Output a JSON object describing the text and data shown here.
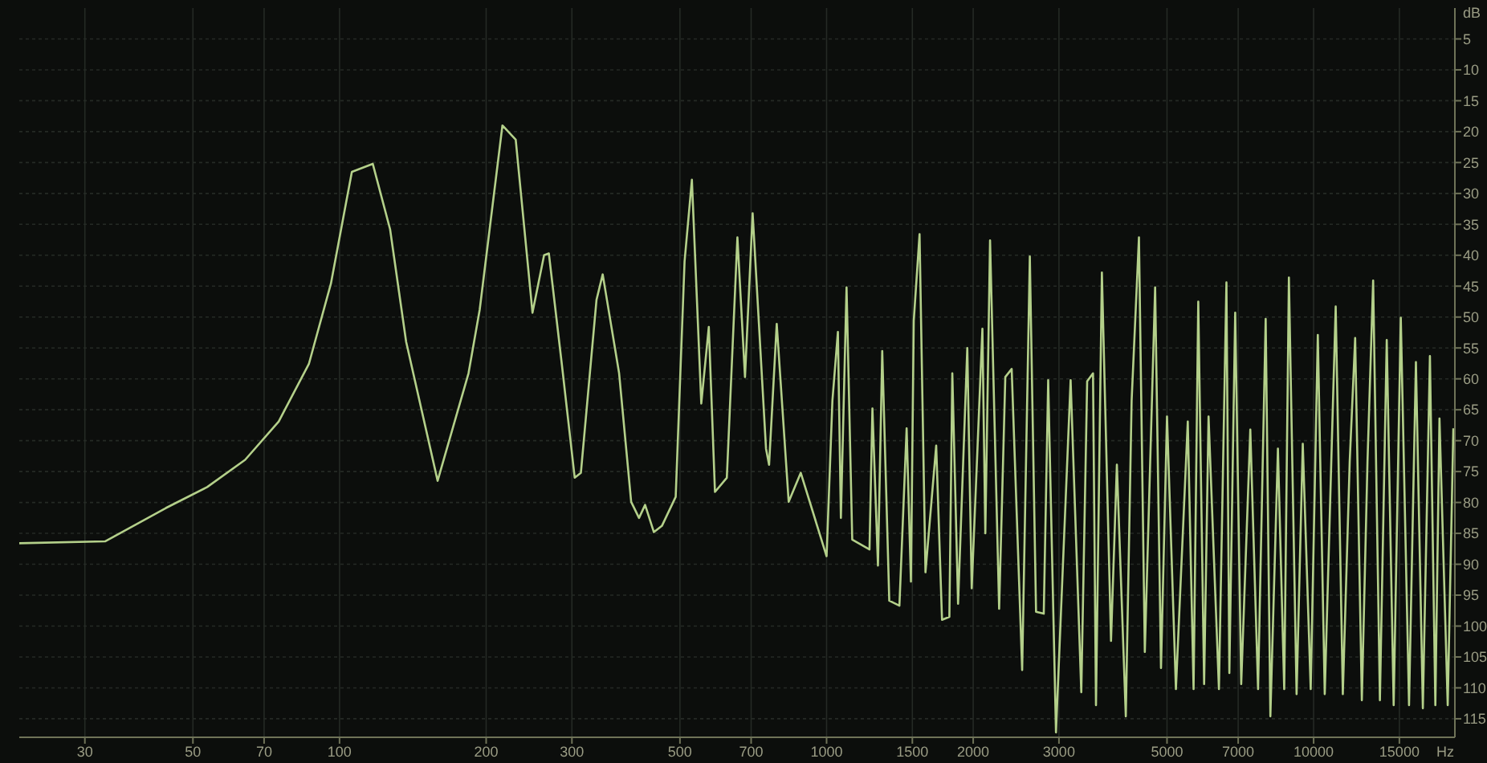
{
  "chart_data": {
    "type": "line",
    "xlabel": "Hz",
    "ylabel": "dB",
    "log": "x",
    "grid": true,
    "marker": "none",
    "line_style": "solid",
    "xlim": [
      22,
      19500
    ],
    "ylim": [
      -118,
      0
    ],
    "xticks": [
      30,
      50,
      70,
      100,
      200,
      300,
      500,
      700,
      1000,
      1500,
      2000,
      3000,
      5000,
      7000,
      10000,
      15000
    ],
    "yticks": [
      {
        "value": -5,
        "label": "5"
      },
      {
        "value": -10,
        "label": "10"
      },
      {
        "value": -15,
        "label": "15"
      },
      {
        "value": -20,
        "label": "20"
      },
      {
        "value": -25,
        "label": "25"
      },
      {
        "value": -30,
        "label": "30"
      },
      {
        "value": -35,
        "label": "35"
      },
      {
        "value": -40,
        "label": "40"
      },
      {
        "value": -45,
        "label": "45"
      },
      {
        "value": -50,
        "label": "50"
      },
      {
        "value": -55,
        "label": "55"
      },
      {
        "value": -60,
        "label": "60"
      },
      {
        "value": -65,
        "label": "65"
      },
      {
        "value": -70,
        "label": "70"
      },
      {
        "value": -75,
        "label": "75"
      },
      {
        "value": -80,
        "label": "80"
      },
      {
        "value": -85,
        "label": "85"
      },
      {
        "value": -90,
        "label": "90"
      },
      {
        "value": -95,
        "label": "95"
      },
      {
        "value": -100,
        "label": "100"
      },
      {
        "value": -105,
        "label": "105"
      },
      {
        "value": -110,
        "label": "110"
      },
      {
        "value": -115,
        "label": "115"
      }
    ],
    "x": [
      22,
      33,
      44,
      53.5,
      64,
      75,
      86.5,
      96,
      106,
      117,
      127,
      137,
      159,
      184,
      194,
      216,
      230,
      249,
      263,
      269,
      286,
      304,
      313,
      337,
      347,
      375,
      397,
      412,
      424,
      442,
      459,
      490,
      511,
      529,
      553,
      573,
      590,
      624,
      656,
      680,
      705,
      751,
      762,
      790,
      836,
      885,
      1000,
      1028,
      1055,
      1070,
      1099,
      1129,
      1225,
      1242,
      1275,
      1301,
      1345,
      1411,
      1460,
      1490,
      1510,
      1552,
      1596,
      1679,
      1726,
      1787,
      1812,
      1862,
      1945,
      1986,
      2089,
      2118,
      2166,
      2261,
      2328,
      2399,
      2521,
      2614,
      2692,
      2792,
      2851,
      2958,
      3170,
      3334,
      3428,
      3524,
      3574,
      3675,
      3837,
      3945,
      4115,
      4230,
      4379,
      4502,
      4727,
      4860,
      5000,
      5215,
      5516,
      5669,
      5796,
      5959,
      6085,
      6391,
      6622,
      6714,
      6902,
      7101,
      7413,
      7690,
      7972,
      8151,
      8447,
      8702,
      8897,
      9226,
      9500,
      9863,
      10200,
      10540,
      10890,
      11100,
      11480,
      11860,
      12170,
      12560,
      12900,
      13250,
      13680,
      14130,
      14600,
      15100,
      15700,
      16220,
      16760,
      17330,
      17780,
      18130,
      18850,
      19360
    ],
    "series": [
      {
        "color": "#b4d08a",
        "values": [
          -86.6,
          -86.3,
          -80.9,
          -77.5,
          -73.1,
          -66.9,
          -57.6,
          -44.6,
          -26.5,
          -25.2,
          -35.8,
          -54,
          -76.5,
          -59.1,
          -48.8,
          -19,
          -21.3,
          -49.3,
          -40,
          -39.7,
          -57.6,
          -76,
          -75.2,
          -47.2,
          -43.1,
          -59.1,
          -79.9,
          -82.5,
          -80.4,
          -84.8,
          -83.8,
          -79.1,
          -41,
          -27.8,
          -64,
          -51.6,
          -78.3,
          -76,
          -37.1,
          -59.7,
          -33.2,
          -71.3,
          -73.9,
          -51.1,
          -79.9,
          -75.2,
          -88.7,
          -63.5,
          -52.4,
          -82.5,
          -45.2,
          -86,
          -87.6,
          -64.8,
          -90.2,
          -55.5,
          -95.9,
          -96.7,
          -68,
          -92.8,
          -50.6,
          -36.6,
          -91.3,
          -70.8,
          -99,
          -98.5,
          -59.1,
          -96.4,
          -55,
          -93.9,
          -51.9,
          -85,
          -37.6,
          -97.2,
          -59.7,
          -58.4,
          -107.1,
          -40.2,
          -97.7,
          -98,
          -60.2,
          -117.2,
          -60.2,
          -110.7,
          -60.4,
          -59.1,
          -112.8,
          -42.8,
          -102.4,
          -73.9,
          -114.6,
          -63.5,
          -37.1,
          -104.2,
          -45.2,
          -106.8,
          -66.1,
          -110.2,
          -66.9,
          -110.2,
          -47.5,
          -109.4,
          -66.1,
          -110.2,
          -44.4,
          -107.6,
          -49.3,
          -109.4,
          -68.2,
          -110.2,
          -50.3,
          -114.6,
          -71.3,
          -110.2,
          -43.6,
          -111,
          -70.5,
          -110.2,
          -52.9,
          -111,
          -71.3,
          -48.3,
          -111,
          -73.4,
          -53.4,
          -112,
          -73.4,
          -44.1,
          -112,
          -53.7,
          -112.8,
          -50.1,
          -112.8,
          -57.3,
          -113.3,
          -56.3,
          -112.8,
          -66.4,
          -112.8,
          -68
        ]
      }
    ]
  }
}
